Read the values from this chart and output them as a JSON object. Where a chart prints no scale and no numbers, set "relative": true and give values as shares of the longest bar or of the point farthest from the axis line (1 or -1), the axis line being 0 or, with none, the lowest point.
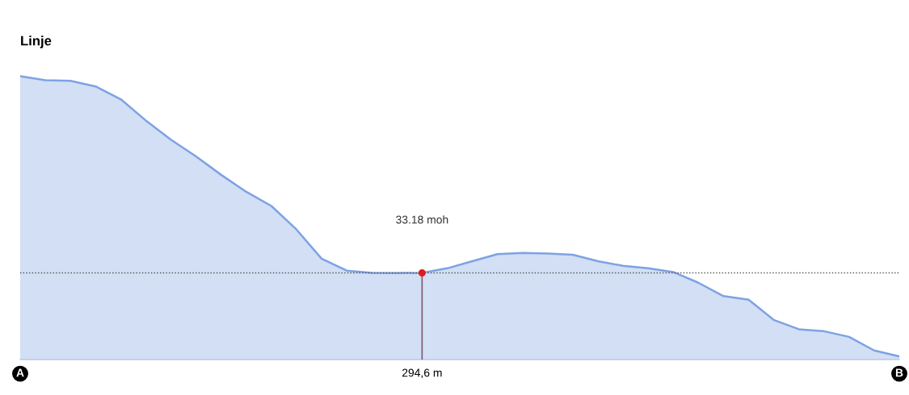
{
  "chart_data": {
    "type": "area",
    "title": "Linje",
    "relative": true,
    "categories": [
      "A",
      null,
      null,
      null,
      null,
      null,
      null,
      null,
      null,
      null,
      null,
      null,
      null,
      null,
      null,
      null,
      "294,6 m",
      null,
      null,
      null,
      null,
      null,
      null,
      null,
      null,
      null,
      null,
      null,
      null,
      null,
      null,
      null,
      null,
      null,
      null,
      "B"
    ],
    "series": [
      {
        "color": "#7ea2e3",
        "values": [
          1,
          0.986,
          0.984,
          0.964,
          0.919,
          0.844,
          0.776,
          0.717,
          0.652,
          0.592,
          0.542,
          0.459,
          0.356,
          0.314,
          0.306,
          0.305,
          0.306,
          0.322,
          0.347,
          0.372,
          0.376,
          0.374,
          0.37,
          0.347,
          0.331,
          0.322,
          0.309,
          0.271,
          0.224,
          0.211,
          0.14,
          0.107,
          0.1,
          0.08,
          0.032,
          0.011
        ]
      },
      {
        "type": "lollipop",
        "color": "#e01b1b",
        "values": [
          null,
          null,
          null,
          null,
          null,
          null,
          null,
          null,
          null,
          null,
          null,
          null,
          null,
          null,
          null,
          null,
          0.306,
          null,
          null,
          null,
          null,
          null,
          null,
          null,
          null,
          null,
          null,
          null,
          null,
          null,
          null,
          null,
          null,
          null,
          null,
          null
        ]
      }
    ],
    "ref_lines": [
      {
        "axis": "y",
        "value": 0.306,
        "color": "#555555",
        "line_style": "dotted"
      }
    ],
    "annotations": [
      "33.18 moh"
    ],
    "grid": false,
    "legend": false
  }
}
